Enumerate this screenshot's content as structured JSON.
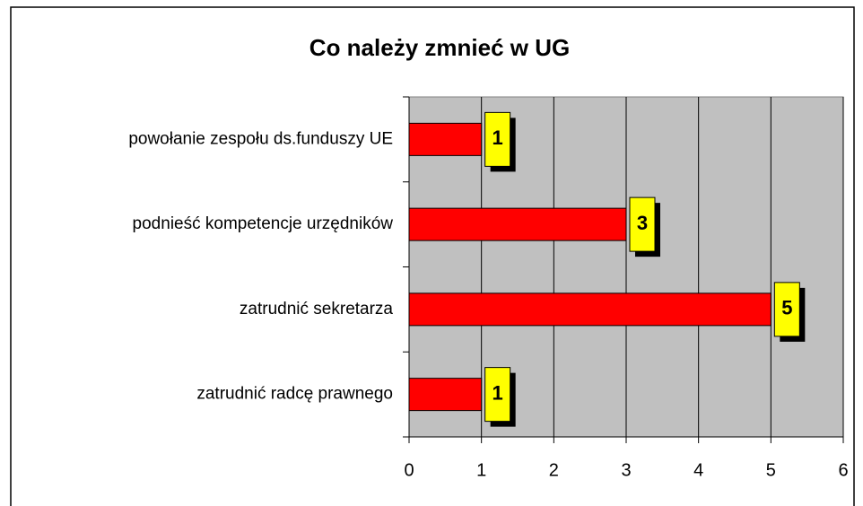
{
  "chart_data": {
    "type": "bar",
    "orientation": "horizontal",
    "title": "Co należy zmnieć w UG",
    "categories": [
      "powołanie zespołu ds.funduszy UE",
      "podnieść kompetencje urzędników",
      "zatrudnić sekretarza",
      "zatrudnić radcę prawnego"
    ],
    "values": [
      1,
      3,
      5,
      1
    ],
    "color": "#ff0000",
    "label_color": "#ffff00",
    "plot_color": "#c0c0c0",
    "xlim": [
      0,
      6
    ],
    "xticks": [
      0,
      1,
      2,
      3,
      4,
      5,
      6
    ],
    "grid": true
  }
}
